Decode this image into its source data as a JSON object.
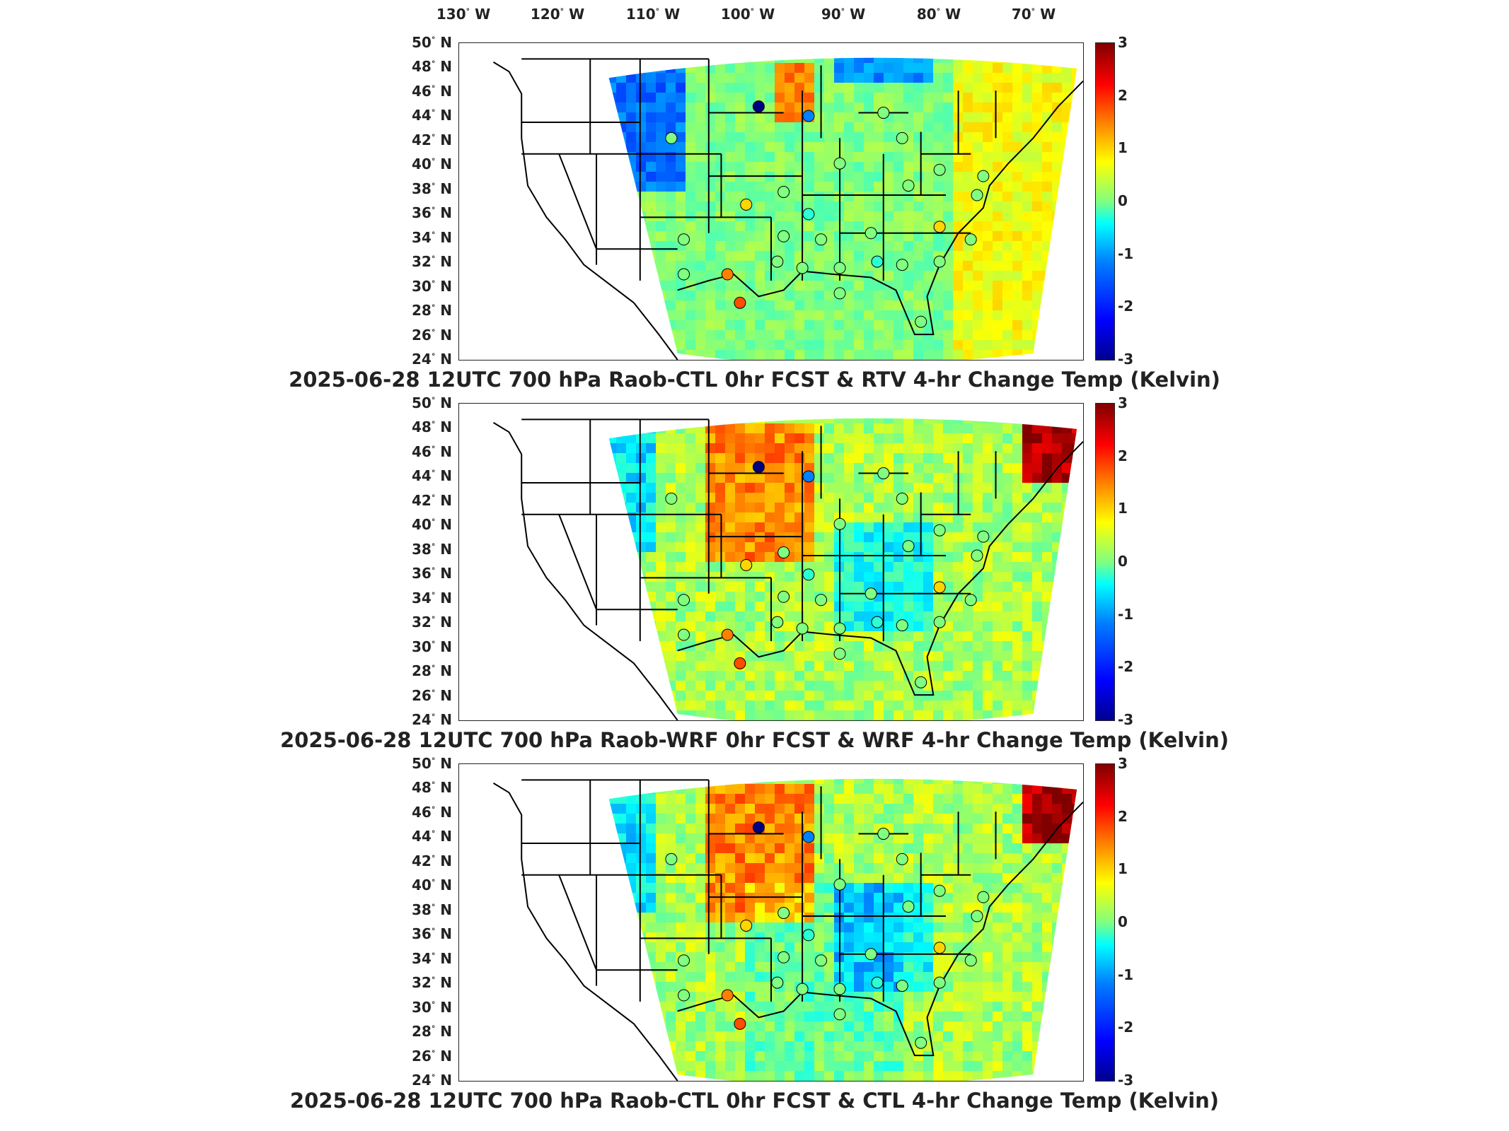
{
  "figure": {
    "lon_labels": [
      "130 W",
      "120 W",
      "110 W",
      "100 W",
      "90 W",
      "80 W",
      "70 W"
    ],
    "lat_labels": [
      "50 N",
      "48 N",
      "46 N",
      "44 N",
      "42 N",
      "40 N",
      "38 N",
      "36 N",
      "34 N",
      "32 N",
      "30 N",
      "28 N",
      "26 N",
      "24 N"
    ],
    "colorbar_ticks": [
      "3",
      "2",
      "1",
      "0",
      "-1",
      "-2",
      "-3"
    ],
    "colorbar_range": [
      -3,
      3
    ],
    "colormap": "jet",
    "degree_symbol": "°"
  },
  "panels": [
    {
      "title": "2025-06-28 12UTC 700 hPa Raob-CTL 0hr FCST & RTV 4-hr Change Temp (Kelvin)",
      "field_style": "rtv"
    },
    {
      "title": "2025-06-28 12UTC 700 hPa Raob-WRF 0hr FCST & WRF 4-hr Change Temp (Kelvin)",
      "field_style": "wrf"
    },
    {
      "title": "2025-06-28 12UTC 700 hPa Raob-CTL 0hr FCST & CTL 4-hr Change Temp (Kelvin)",
      "field_style": "ctl"
    }
  ]
}
